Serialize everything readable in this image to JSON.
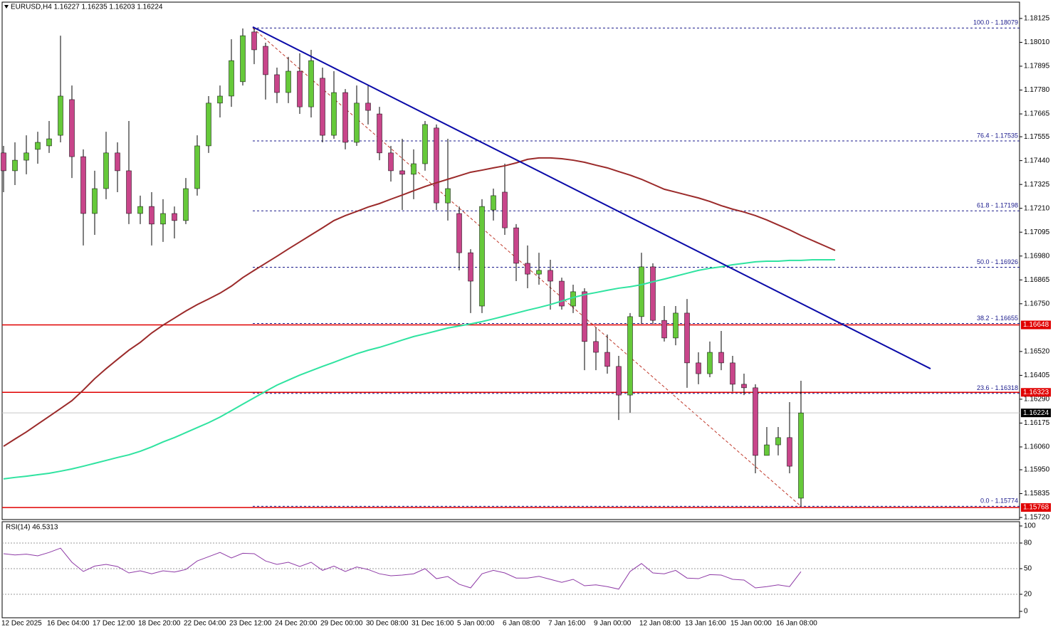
{
  "chart_data": {
    "type": "candlestick",
    "header": "EURUSD,H4  1.16227 1.16235 1.16203 1.16224",
    "categories": [
      "12 Dec 2025",
      null,
      null,
      null,
      "16 Dec 04:00",
      null,
      null,
      null,
      "17 Dec 12:00",
      null,
      null,
      null,
      "18 Dec 20:00",
      null,
      null,
      null,
      "22 Dec 04:00",
      null,
      null,
      null,
      "23 Dec 12:00",
      null,
      null,
      null,
      "24 Dec 20:00",
      null,
      null,
      null,
      "29 Dec 00:00",
      null,
      null,
      null,
      "30 Dec 08:00",
      null,
      null,
      null,
      "31 Dec 16:00",
      null,
      null,
      null,
      "5 Jan 00:00",
      null,
      null,
      null,
      "6 Jan 08:00",
      null,
      null,
      null,
      "7 Jan 16:00",
      null,
      null,
      null,
      "9 Jan 00:00",
      null,
      null,
      null,
      "12 Jan 08:00",
      null,
      null,
      null,
      "13 Jan 16:00",
      null,
      null,
      null,
      "15 Jan 00:00",
      null,
      null,
      null,
      "16 Jan 08:00",
      null,
      null,
      null,
      null,
      null
    ],
    "ohlc": {
      "open": [
        1.17477,
        1.17391,
        1.17442,
        1.17494,
        1.17511,
        1.17562,
        1.17734,
        1.17459,
        1.17185,
        1.17305,
        1.17477,
        1.17391,
        1.17185,
        1.17219,
        1.17134,
        1.17185,
        1.17151,
        1.17305,
        1.17511,
        1.17717,
        1.17751,
        1.1782,
        1.1806,
        1.17991,
        1.17854,
        1.17768,
        1.17871,
        1.17699,
        1.17837,
        1.17562,
        1.17768,
        1.17528,
        1.17717,
        1.17665,
        1.17477,
        1.17391,
        1.17374,
        1.17425,
        1.17597,
        1.17236,
        1.17185,
        1.16996,
        1.16739,
        1.17202,
        1.17288,
        1.17116,
        1.16945,
        1.16893,
        1.16911,
        1.16859,
        1.16739,
        1.16808,
        1.16568,
        1.16516,
        1.16448,
        1.1631,
        1.16688,
        1.16928,
        1.1667,
        1.16585,
        1.16705,
        1.16465,
        1.16413,
        1.16516,
        1.16465,
        1.16362,
        1.16345,
        1.16019,
        1.1607,
        1.16105,
        1.15813,
        null,
        null,
        null
      ],
      "high": [
        1.17511,
        1.17528,
        1.17562,
        1.17579,
        1.17631,
        1.18042,
        1.17802,
        1.17494,
        1.17391,
        1.17579,
        1.17528,
        1.17631,
        1.17271,
        1.17288,
        1.17254,
        1.17219,
        1.17356,
        1.17562,
        1.17751,
        1.17802,
        1.18025,
        1.18077,
        1.18084,
        1.18008,
        1.17888,
        1.1794,
        1.17957,
        1.17974,
        1.17888,
        1.17871,
        1.17785,
        1.17802,
        1.17802,
        1.17699,
        1.17511,
        1.17545,
        1.17494,
        1.17631,
        1.17614,
        1.17545,
        1.17219,
        1.17013,
        1.17254,
        1.17305,
        1.17425,
        1.17134,
        1.17031,
        1.16996,
        1.16962,
        1.16876,
        1.16842,
        1.16825,
        1.16636,
        1.16602,
        1.16499,
        1.16705,
        1.16996,
        1.16945,
        1.16739,
        1.16739,
        1.16773,
        1.16516,
        1.16568,
        1.16619,
        1.16499,
        1.16413,
        1.16362,
        1.16156,
        1.16156,
        1.16276,
        1.16379,
        null,
        null,
        null
      ],
      "low": [
        1.17288,
        1.17322,
        1.17374,
        1.17425,
        1.17477,
        1.17528,
        1.17356,
        1.17031,
        1.17082,
        1.17254,
        1.17288,
        1.17134,
        1.17134,
        1.17031,
        1.17048,
        1.17065,
        1.17134,
        1.17271,
        1.17477,
        1.17648,
        1.17699,
        1.17802,
        1.17905,
        1.17734,
        1.17717,
        1.17717,
        1.17665,
        1.17648,
        1.17528,
        1.17545,
        1.17494,
        1.17511,
        1.17614,
        1.17442,
        1.17339,
        1.17202,
        1.17254,
        1.17391,
        1.17202,
        1.17151,
        1.16911,
        1.16705,
        1.16705,
        1.17151,
        1.17082,
        1.16859,
        1.16825,
        1.16842,
        1.16722,
        1.16722,
        1.16705,
        1.1643,
        1.1643,
        1.16413,
        1.1619,
        1.16225,
        1.16653,
        1.16653,
        1.16568,
        1.1655,
        1.16345,
        1.16362,
        1.16396,
        1.1643,
        1.16327,
        1.1631,
        1.15933,
        1.16019,
        1.16019,
        1.15933,
        1.15774,
        null,
        null,
        null
      ],
      "close": [
        1.17391,
        1.17442,
        1.17477,
        1.17528,
        1.17545,
        1.17751,
        1.17459,
        1.17185,
        1.17305,
        1.17477,
        1.17391,
        1.17185,
        1.17219,
        1.17134,
        1.17185,
        1.17151,
        1.17305,
        1.17511,
        1.17717,
        1.17751,
        1.17922,
        1.18042,
        1.17974,
        1.17854,
        1.17768,
        1.17871,
        1.17699,
        1.17922,
        1.17562,
        1.17768,
        1.17528,
        1.17717,
        1.17682,
        1.17477,
        1.17391,
        1.17374,
        1.17425,
        1.17614,
        1.17236,
        1.17305,
        1.16996,
        1.16859,
        1.17219,
        1.17271,
        1.17116,
        1.16945,
        1.16893,
        1.16911,
        1.16859,
        1.16739,
        1.16808,
        1.16568,
        1.16516,
        1.16448,
        1.1631,
        1.16688,
        1.16928,
        1.1667,
        1.16585,
        1.16705,
        1.16465,
        1.16413,
        1.16516,
        1.16465,
        1.16362,
        1.16345,
        1.16019,
        1.1607,
        1.16105,
        1.15967,
        1.16224,
        null,
        null,
        null
      ]
    },
    "up_color": "#66c93a",
    "down_color": "#c8458a",
    "series": [
      {
        "color": "#9b2a2a",
        "values": [
          1.16063,
          1.16098,
          1.16132,
          1.1617,
          1.16207,
          1.16245,
          1.16283,
          1.16334,
          1.16389,
          1.16437,
          1.16482,
          1.16526,
          1.16564,
          1.16609,
          1.16647,
          1.16681,
          1.16715,
          1.16746,
          1.16773,
          1.16801,
          1.16835,
          1.16876,
          1.16911,
          1.16945,
          1.16979,
          1.17014,
          1.17048,
          1.17082,
          1.17116,
          1.17151,
          1.17175,
          1.17195,
          1.17216,
          1.17233,
          1.17254,
          1.17274,
          1.17295,
          1.17315,
          1.17333,
          1.1735,
          1.17367,
          1.17384,
          1.17394,
          1.17405,
          1.17415,
          1.17429,
          1.17446,
          1.17453,
          1.17453,
          1.17449,
          1.17442,
          1.17432,
          1.17418,
          1.17405,
          1.17387,
          1.1737,
          1.1735,
          1.17326,
          1.17302,
          1.17288,
          1.17274,
          1.1726,
          1.17243,
          1.17223,
          1.17206,
          1.17192,
          1.17175,
          1.17154,
          1.1713,
          1.17106,
          1.17079,
          1.17055,
          1.17031,
          1.17007
        ]
      },
      {
        "color": "#2fe3a0",
        "values": [
          1.15906,
          1.15913,
          1.15919,
          1.15926,
          1.15933,
          1.15943,
          1.15954,
          1.15967,
          1.15981,
          1.15995,
          1.16009,
          1.16022,
          1.16039,
          1.1606,
          1.16084,
          1.16105,
          1.16129,
          1.16153,
          1.16177,
          1.16204,
          1.16235,
          1.16266,
          1.16297,
          1.16328,
          1.16358,
          1.16382,
          1.16406,
          1.16427,
          1.16448,
          1.16468,
          1.16489,
          1.16509,
          1.16526,
          1.1654,
          1.16557,
          1.16575,
          1.16592,
          1.16605,
          1.16619,
          1.16633,
          1.16643,
          1.16653,
          1.16664,
          1.16677,
          1.16691,
          1.16705,
          1.16719,
          1.16732,
          1.16746,
          1.16763,
          1.1678,
          1.16794,
          1.16804,
          1.16815,
          1.16825,
          1.16832,
          1.16842,
          1.16856,
          1.16869,
          1.16883,
          1.16897,
          1.16911,
          1.16921,
          1.16928,
          1.16938,
          1.16945,
          1.16952,
          1.16955,
          1.16955,
          1.16959,
          1.16959,
          1.16962,
          1.16962,
          1.16962
        ]
      }
    ],
    "trendline": {
      "values": [
        1.18084,
        1.16437
      ],
      "color": "#0a0aa8"
    },
    "fib_color": "#1a1a8c",
    "fib_diagonal_color": "#c0392b",
    "fib_levels": [
      {
        "value": 1.18079,
        "label": "100.0 - 1.18079"
      },
      {
        "value": 1.17535,
        "label": "76.4 - 1.17535"
      },
      {
        "value": 1.17198,
        "label": "61.8 - 1.17198"
      },
      {
        "value": 1.16926,
        "label": "50.0 - 1.16926"
      },
      {
        "value": 1.16655,
        "label": "38.2 - 1.16655"
      },
      {
        "value": 1.16318,
        "label": "23.6 - 1.16318"
      },
      {
        "value": 1.15774,
        "label": "0.0 - 1.15774"
      }
    ],
    "hlines": [
      {
        "value": 1.16648,
        "line_color": "#e00000",
        "box_color": "#e00000"
      },
      {
        "value": 1.16323,
        "line_color": "#e00000",
        "box_color": "#e00000"
      },
      {
        "value": 1.15768,
        "line_color": "#e00000",
        "box_color": "#e00000"
      },
      {
        "value": 1.16224,
        "line_color": "#c8c8c8",
        "box_color": "#000000"
      }
    ],
    "ylim": [
      1.1571,
      1.18214
    ],
    "yticks": [
      1.18125,
      {
        "value": 1.1801,
        "label": "1.18010"
      },
      1.17895,
      {
        "value": 1.1778,
        "label": "1.17780"
      },
      1.17665,
      1.17555,
      {
        "value": 1.1744,
        "label": "1.17440"
      },
      1.17325,
      {
        "value": 1.1721,
        "label": "1.17210"
      },
      1.17095,
      {
        "value": 1.1698,
        "label": "1.16980"
      },
      1.16865,
      {
        "value": 1.1675,
        "label": "1.16750"
      },
      {
        "value": 1.1652,
        "label": "1.16520"
      },
      1.16405,
      {
        "value": 1.1629,
        "label": "1.16290"
      },
      1.16175,
      {
        "value": 1.1606,
        "label": "1.16060"
      },
      {
        "value": 1.1595,
        "label": "1.15950"
      },
      1.15835,
      {
        "value": 1.1572,
        "label": "1.15720"
      }
    ],
    "rsi": {
      "title": "RSI(14) 46.5313",
      "color": "#8e3aa6",
      "values": [
        67.5,
        66,
        67,
        65,
        69,
        74,
        57.5,
        46.7,
        53,
        55,
        52.5,
        45,
        47.5,
        44,
        47.5,
        46,
        49,
        59,
        64,
        69,
        62.5,
        68,
        67.5,
        59,
        55,
        57.5,
        52.5,
        57.5,
        48,
        53,
        46.7,
        52,
        49,
        44,
        41.7,
        42.5,
        44,
        50,
        38.3,
        40.8,
        31.7,
        27.5,
        44,
        48,
        45,
        39,
        39,
        41,
        37.5,
        34,
        37.5,
        30,
        31,
        29,
        26,
        46.7,
        56,
        45,
        44,
        48,
        39,
        38.3,
        43,
        42.5,
        37.5,
        36.7,
        27.5,
        29,
        31,
        29,
        46.53,
        null,
        null,
        null
      ],
      "ylim": [
        0,
        100
      ],
      "yticks": [
        100,
        80,
        50,
        20,
        0
      ],
      "levels": [
        80,
        50,
        20
      ]
    }
  }
}
